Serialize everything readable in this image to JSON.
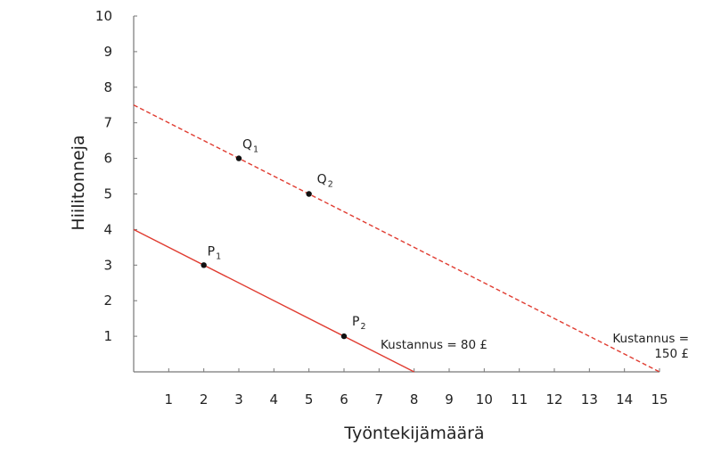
{
  "chart_data": {
    "type": "line",
    "xlabel": "Työntekijämäärä",
    "ylabel": "Hiilitonneja",
    "xlim": [
      0,
      15
    ],
    "ylim": [
      0,
      10
    ],
    "x_ticks": [
      1,
      2,
      3,
      4,
      5,
      6,
      7,
      8,
      9,
      10,
      11,
      12,
      13,
      14,
      15
    ],
    "y_ticks": [
      1,
      2,
      3,
      4,
      5,
      6,
      7,
      8,
      9,
      10
    ],
    "grid": false,
    "colors": {
      "line": "#e03c31",
      "point": "#111111",
      "axis": "#777777"
    },
    "series": [
      {
        "style": "solid",
        "x": [
          0,
          8
        ],
        "y": [
          4,
          0
        ],
        "label_lines": [
          "Kustannus = 80 £"
        ],
        "points": [
          {
            "name": "P",
            "sub": "1",
            "x": 2,
            "y": 3
          },
          {
            "name": "P",
            "sub": "2",
            "x": 6,
            "y": 1
          }
        ]
      },
      {
        "style": "dashed",
        "x": [
          0,
          15
        ],
        "y": [
          7.5,
          0
        ],
        "label_lines": [
          "Kustannus =",
          "150 £"
        ],
        "points": [
          {
            "name": "Q",
            "sub": "1",
            "x": 3,
            "y": 6
          },
          {
            "name": "Q",
            "sub": "2",
            "x": 5,
            "y": 5
          }
        ]
      }
    ]
  }
}
